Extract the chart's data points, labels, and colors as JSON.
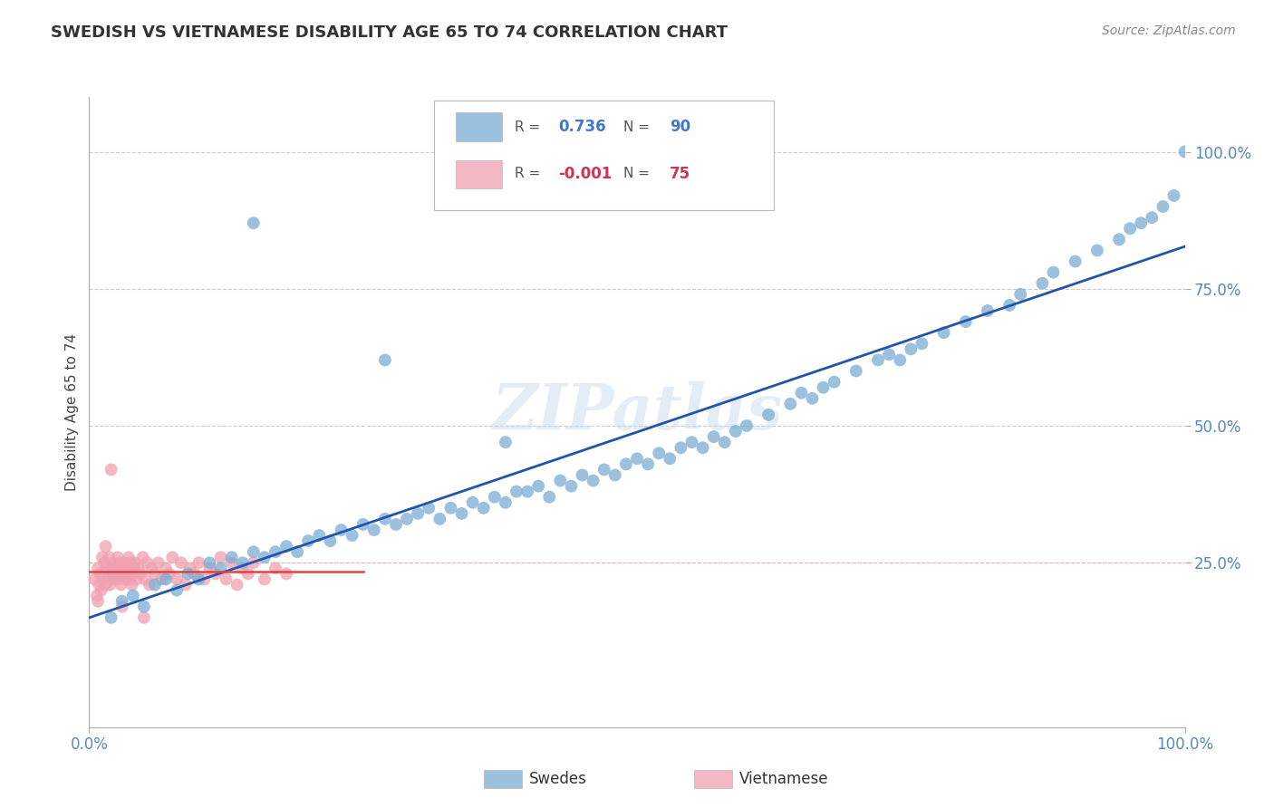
{
  "title": "SWEDISH VS VIETNAMESE DISABILITY AGE 65 TO 74 CORRELATION CHART",
  "source": "Source: ZipAtlas.com",
  "ylabel": "Disability Age 65 to 74",
  "xlim": [
    0.0,
    1.0
  ],
  "ylim": [
    -0.05,
    1.1
  ],
  "xtick_labels": [
    "0.0%",
    "100.0%"
  ],
  "ytick_labels": [
    "100.0%",
    "75.0%",
    "50.0%",
    "25.0%"
  ],
  "ytick_positions": [
    1.0,
    0.75,
    0.5,
    0.25
  ],
  "grid_color": "#cccccc",
  "background_color": "#ffffff",
  "swedish_color": "#7aadd4",
  "vietnamese_color": "#f0a0b0",
  "swedish_line_color": "#2255aa",
  "vietnamese_line_color": "#dd4444",
  "r_swedish": 0.736,
  "n_swedish": 90,
  "r_vietnamese": -0.001,
  "n_vietnamese": 75,
  "watermark": "ZIPatlas",
  "swedish_points_x": [
    0.02,
    0.03,
    0.04,
    0.05,
    0.06,
    0.07,
    0.08,
    0.09,
    0.1,
    0.11,
    0.12,
    0.13,
    0.14,
    0.15,
    0.16,
    0.17,
    0.18,
    0.19,
    0.2,
    0.21,
    0.22,
    0.23,
    0.24,
    0.25,
    0.26,
    0.27,
    0.28,
    0.29,
    0.3,
    0.31,
    0.32,
    0.33,
    0.34,
    0.35,
    0.36,
    0.37,
    0.38,
    0.39,
    0.4,
    0.41,
    0.42,
    0.43,
    0.44,
    0.45,
    0.46,
    0.47,
    0.48,
    0.49,
    0.5,
    0.51,
    0.52,
    0.53,
    0.54,
    0.55,
    0.56,
    0.57,
    0.58,
    0.59,
    0.6,
    0.62,
    0.64,
    0.65,
    0.66,
    0.67,
    0.68,
    0.7,
    0.72,
    0.73,
    0.74,
    0.75,
    0.76,
    0.78,
    0.8,
    0.82,
    0.84,
    0.85,
    0.87,
    0.88,
    0.9,
    0.92,
    0.94,
    0.95,
    0.96,
    0.97,
    0.98,
    0.99,
    1.0,
    0.38,
    0.27,
    0.15
  ],
  "swedish_points_y": [
    0.15,
    0.18,
    0.19,
    0.17,
    0.21,
    0.22,
    0.2,
    0.23,
    0.22,
    0.25,
    0.24,
    0.26,
    0.25,
    0.27,
    0.26,
    0.27,
    0.28,
    0.27,
    0.29,
    0.3,
    0.29,
    0.31,
    0.3,
    0.32,
    0.31,
    0.33,
    0.32,
    0.33,
    0.34,
    0.35,
    0.33,
    0.35,
    0.34,
    0.36,
    0.35,
    0.37,
    0.36,
    0.38,
    0.38,
    0.39,
    0.37,
    0.4,
    0.39,
    0.41,
    0.4,
    0.42,
    0.41,
    0.43,
    0.44,
    0.43,
    0.45,
    0.44,
    0.46,
    0.47,
    0.46,
    0.48,
    0.47,
    0.49,
    0.5,
    0.52,
    0.54,
    0.56,
    0.55,
    0.57,
    0.58,
    0.6,
    0.62,
    0.63,
    0.62,
    0.64,
    0.65,
    0.67,
    0.69,
    0.71,
    0.72,
    0.74,
    0.76,
    0.78,
    0.8,
    0.82,
    0.84,
    0.86,
    0.87,
    0.88,
    0.9,
    0.92,
    1.0,
    0.47,
    0.62,
    0.87
  ],
  "vietnamese_points_x": [
    0.005,
    0.007,
    0.008,
    0.009,
    0.01,
    0.011,
    0.012,
    0.013,
    0.014,
    0.015,
    0.016,
    0.017,
    0.018,
    0.019,
    0.02,
    0.021,
    0.022,
    0.023,
    0.024,
    0.025,
    0.026,
    0.027,
    0.028,
    0.029,
    0.03,
    0.031,
    0.032,
    0.033,
    0.034,
    0.035,
    0.036,
    0.037,
    0.038,
    0.039,
    0.04,
    0.041,
    0.042,
    0.043,
    0.045,
    0.047,
    0.049,
    0.051,
    0.053,
    0.055,
    0.057,
    0.06,
    0.063,
    0.066,
    0.07,
    0.073,
    0.076,
    0.08,
    0.084,
    0.088,
    0.092,
    0.096,
    0.1,
    0.105,
    0.11,
    0.115,
    0.12,
    0.125,
    0.13,
    0.135,
    0.14,
    0.145,
    0.15,
    0.16,
    0.17,
    0.18,
    0.02,
    0.03,
    0.05,
    0.008,
    0.015
  ],
  "vietnamese_points_y": [
    0.22,
    0.19,
    0.24,
    0.21,
    0.23,
    0.2,
    0.26,
    0.22,
    0.25,
    0.21,
    0.24,
    0.22,
    0.26,
    0.21,
    0.24,
    0.23,
    0.25,
    0.22,
    0.24,
    0.23,
    0.26,
    0.22,
    0.25,
    0.21,
    0.24,
    0.23,
    0.25,
    0.22,
    0.24,
    0.23,
    0.26,
    0.22,
    0.25,
    0.21,
    0.24,
    0.23,
    0.25,
    0.22,
    0.24,
    0.23,
    0.26,
    0.22,
    0.25,
    0.21,
    0.24,
    0.23,
    0.25,
    0.22,
    0.24,
    0.23,
    0.26,
    0.22,
    0.25,
    0.21,
    0.24,
    0.23,
    0.25,
    0.22,
    0.24,
    0.23,
    0.26,
    0.22,
    0.25,
    0.21,
    0.24,
    0.23,
    0.25,
    0.22,
    0.24,
    0.23,
    0.42,
    0.17,
    0.15,
    0.18,
    0.28
  ]
}
